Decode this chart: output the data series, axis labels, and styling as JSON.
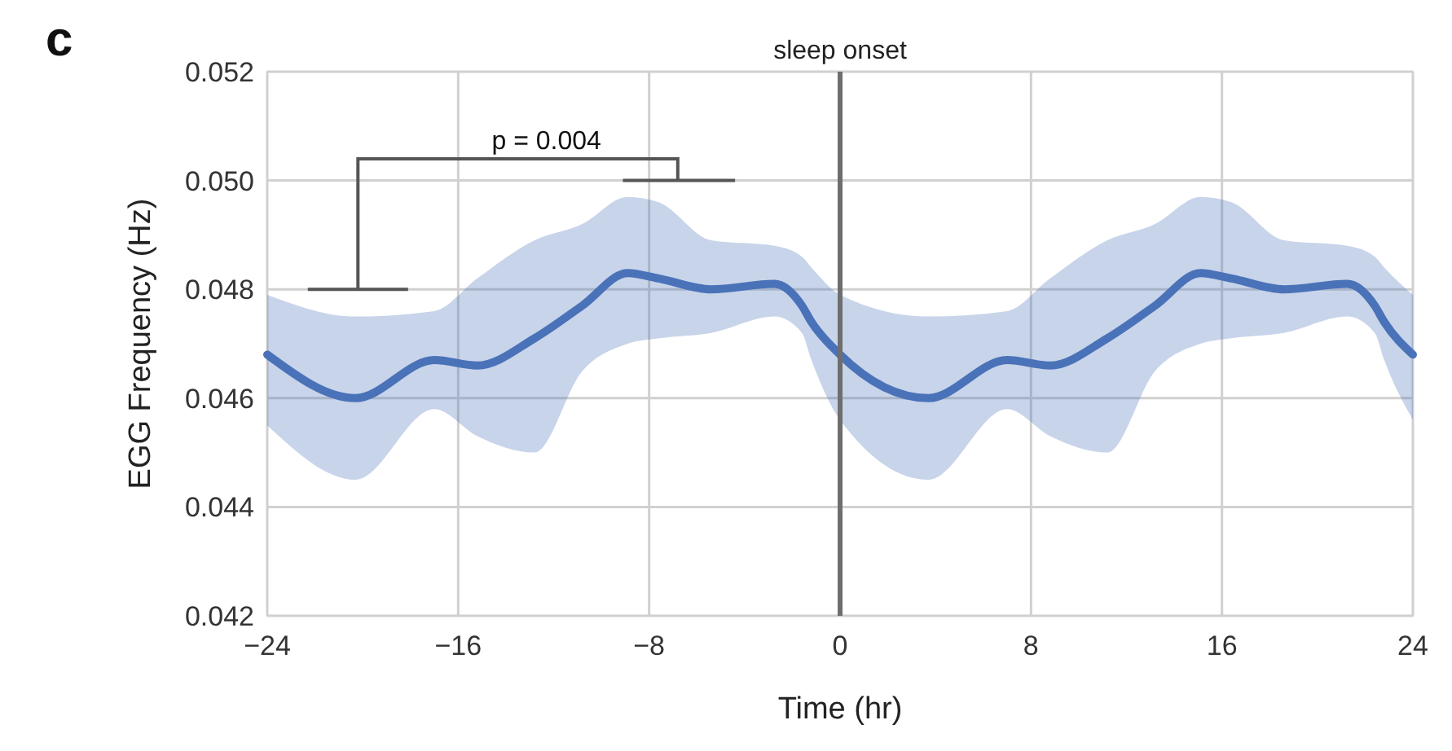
{
  "chart_data": {
    "type": "line",
    "xlabel": "Time (hr)",
    "ylabel": "EGG Frequency (Hz)",
    "xlim": [
      -24,
      24
    ],
    "xticks": [
      -24,
      -16,
      -8,
      0,
      8,
      16,
      24
    ],
    "ylim": [
      0.042,
      0.052
    ],
    "yticks": [
      0.042,
      0.044,
      0.046,
      0.048,
      {
        "value": 0.05,
        "label": "0.050"
      },
      0.052
    ],
    "grid": true,
    "line_style": "solid",
    "marker": "none",
    "series": [
      {
        "color": "#4a72b8",
        "x": [
          -24,
          -20.3,
          -17,
          -15.2,
          -12.8,
          -10.8,
          -8.9,
          -7.6,
          -5.4,
          -2.75,
          -1.6,
          -1.2,
          0,
          3.7,
          7,
          8.8,
          11.2,
          13.2,
          15.1,
          16.4,
          18.6,
          21.25,
          22.4,
          22.8,
          24
        ],
        "values": [
          0.0468,
          0.046,
          0.0467,
          0.0466,
          0.0471,
          0.0477,
          0.0483,
          0.0482,
          0.048,
          0.0481,
          0.0477,
          0.0474,
          0.0468,
          0.046,
          0.0467,
          0.0466,
          0.0471,
          0.0477,
          0.0483,
          0.0482,
          0.048,
          0.0481,
          0.0477,
          0.0474,
          0.0468
        ],
        "lower": [
          0.0455,
          0.0445,
          0.0458,
          0.0453,
          0.045,
          0.0465,
          0.047,
          0.0471,
          0.0472,
          0.0475,
          0.0472,
          0.0467,
          0.0456,
          0.0445,
          0.0458,
          0.0453,
          0.045,
          0.0465,
          0.047,
          0.0471,
          0.0472,
          0.0475,
          0.0472,
          0.0467,
          0.0456
        ],
        "upper": [
          0.0479,
          0.0475,
          0.0476,
          0.0482,
          0.0489,
          0.0492,
          0.0497,
          0.0496,
          0.0489,
          0.0488,
          0.0486,
          0.0484,
          0.0479,
          0.0475,
          0.0476,
          0.0482,
          0.0489,
          0.0492,
          0.0497,
          0.0496,
          0.0489,
          0.0488,
          0.0486,
          0.0484,
          0.0479
        ]
      }
    ],
    "ref_lines": [
      {
        "axis": "x",
        "value": 0,
        "label": "sleep onset",
        "color": "#6e6e6e"
      }
    ],
    "annotations": [
      "c",
      "p = 0.004"
    ]
  }
}
